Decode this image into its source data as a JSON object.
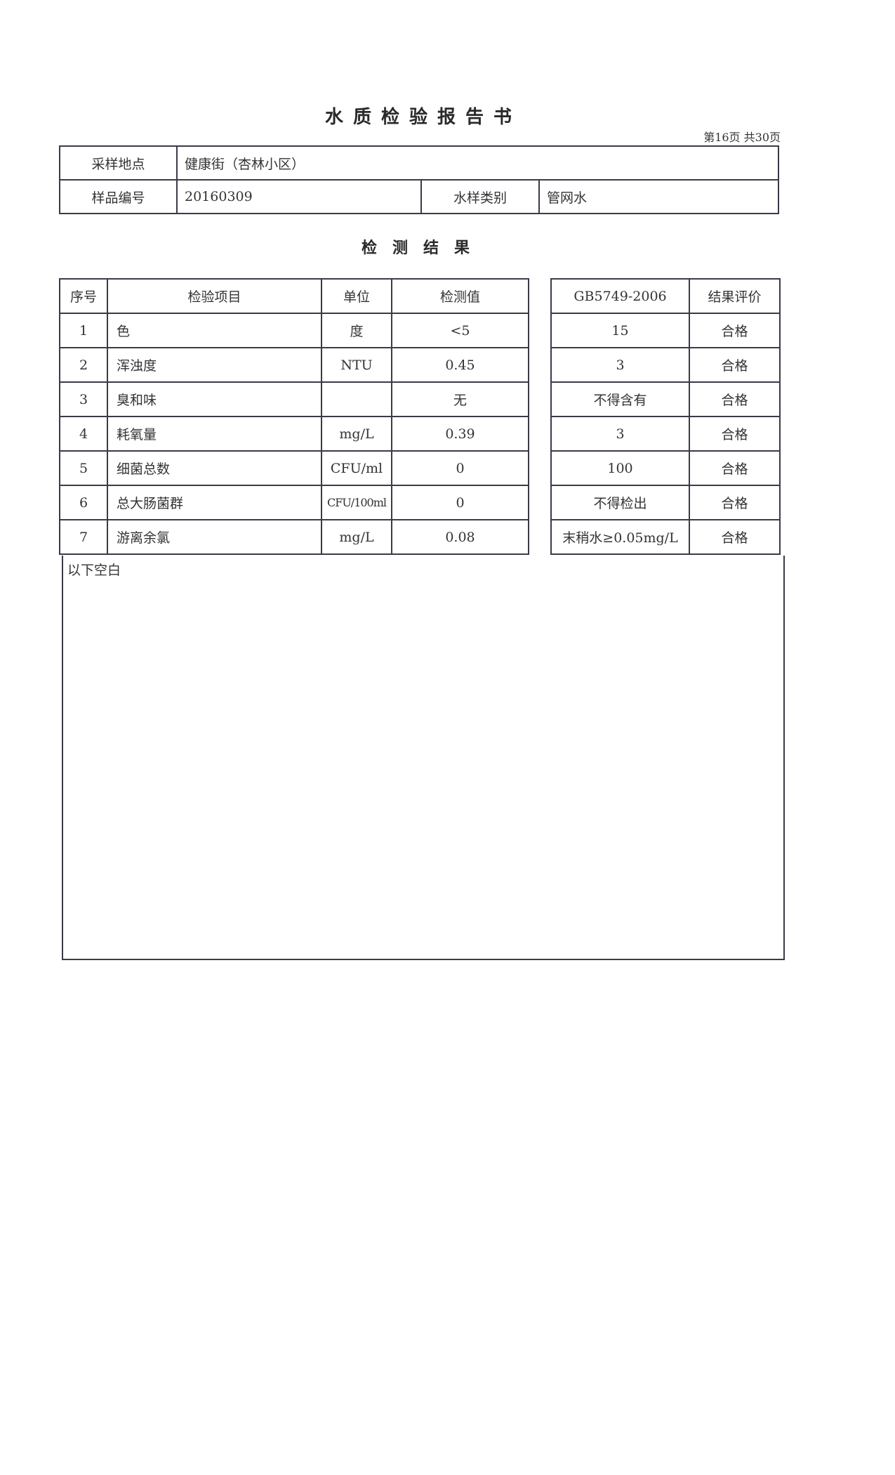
{
  "title": "水质检验报告书",
  "page_number": "第16页  共30页",
  "info": {
    "location_label": "采样地点",
    "location_value": "健康街（杏林小区）",
    "sample_no_label": "样品编号",
    "sample_no_value": "20160309",
    "water_type_label": "水样类别",
    "water_type_value": "管网水"
  },
  "results_title": "检测结果",
  "results": {
    "headers": [
      "序号",
      "检验项目",
      "单位",
      "检测值",
      "GB5749-2006",
      "结果评价"
    ],
    "rows": [
      {
        "no": "1",
        "item": "色",
        "unit": "度",
        "value": "<5",
        "standard": "15",
        "eval": "合格"
      },
      {
        "no": "2",
        "item": "浑浊度",
        "unit": "NTU",
        "value": "0.45",
        "standard": "3",
        "eval": "合格"
      },
      {
        "no": "3",
        "item": "臭和味",
        "unit": "",
        "value": "无",
        "standard": "不得含有",
        "eval": "合格"
      },
      {
        "no": "4",
        "item": "耗氧量",
        "unit": "mg/L",
        "value": "0.39",
        "standard": "3",
        "eval": "合格"
      },
      {
        "no": "5",
        "item": "细菌总数",
        "unit": "CFU/ml",
        "value": "0",
        "standard": "100",
        "eval": "合格"
      },
      {
        "no": "6",
        "item": "总大肠菌群",
        "unit": "CFU/100ml",
        "value": "0",
        "standard": "不得检出",
        "eval": "合格"
      },
      {
        "no": "7",
        "item": "游离余氯",
        "unit": "mg/L",
        "value": "0.08",
        "standard": "末稍水≥0.05mg/L",
        "eval": "合格"
      }
    ]
  },
  "blank_note": "以下空白"
}
